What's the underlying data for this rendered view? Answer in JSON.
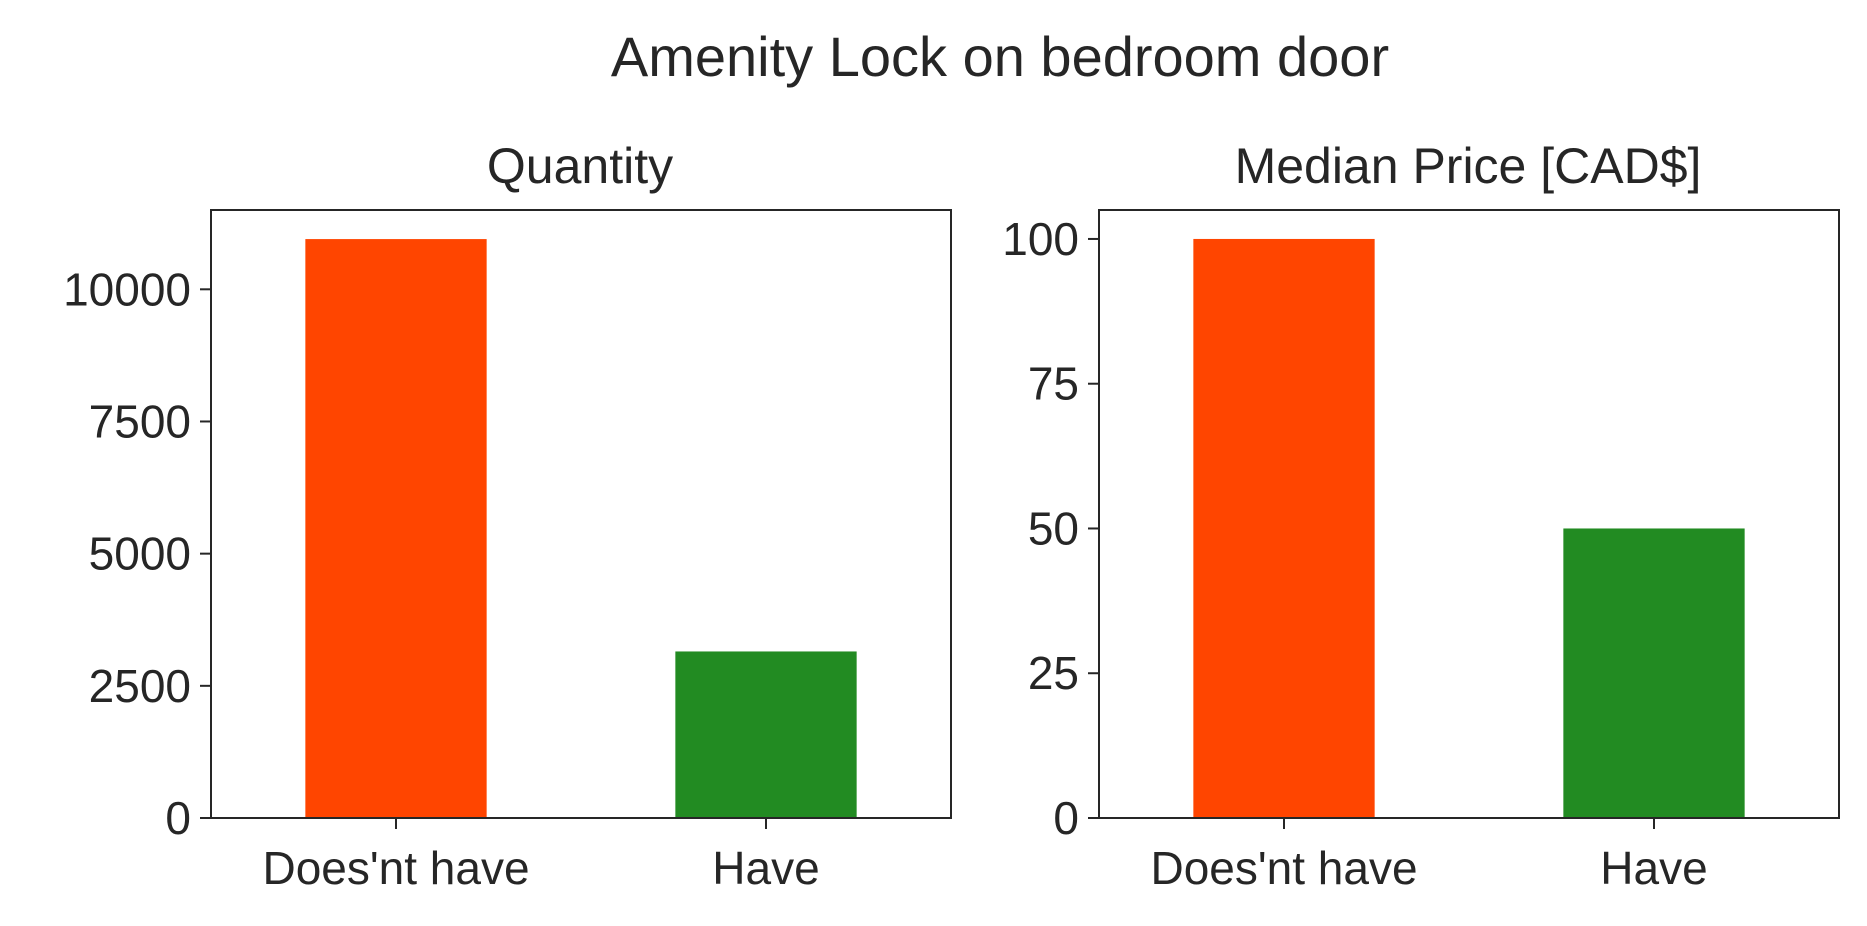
{
  "figure": {
    "title": "Amenity Lock on bedroom door"
  },
  "colors": {
    "bar_does_not_have": "#ff4500",
    "bar_have": "#228b22",
    "axes": "#262626",
    "text": "#262626"
  },
  "chart_data": [
    {
      "type": "bar",
      "title": "Quantity",
      "xlabel": "",
      "ylabel": "",
      "categories": [
        "Does'nt have",
        "Have"
      ],
      "values": [
        10950,
        3150
      ],
      "colors": [
        "#ff4500",
        "#228b22"
      ],
      "ylim": [
        0,
        11500
      ],
      "yticks": [
        0,
        2500,
        5000,
        7500,
        10000
      ],
      "ytick_labels": [
        "0",
        "2500",
        "5000",
        "7500",
        "10000"
      ],
      "grid": false,
      "legend": "none"
    },
    {
      "type": "bar",
      "title": "Median Price [CAD$]",
      "xlabel": "",
      "ylabel": "",
      "categories": [
        "Does'nt have",
        "Have"
      ],
      "values": [
        100,
        50
      ],
      "colors": [
        "#ff4500",
        "#228b22"
      ],
      "ylim": [
        0,
        105
      ],
      "yticks": [
        0,
        25,
        50,
        75,
        100
      ],
      "ytick_labels": [
        "0",
        "25",
        "50",
        "75",
        "100"
      ],
      "grid": false,
      "legend": "none"
    }
  ]
}
